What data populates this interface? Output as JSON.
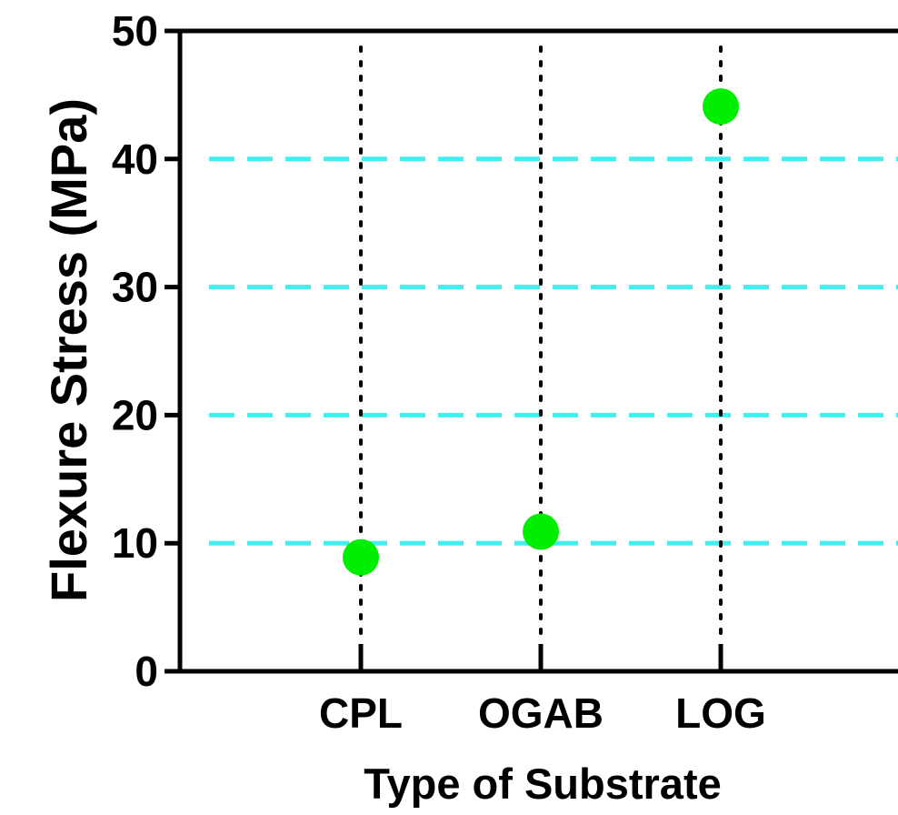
{
  "chart_data": {
    "type": "scatter",
    "categories": [
      "CPL",
      "OGAB",
      "LOG"
    ],
    "values": [
      8.9,
      10.9,
      44.1
    ],
    "xlabel": "Type of Substrate",
    "ylabel": "Flexure Stress (MPa)",
    "ylim": [
      0,
      50
    ],
    "yticks": [
      0,
      10,
      20,
      30,
      40,
      50
    ],
    "grid": true,
    "colors": {
      "marker": "#00ee00",
      "gridline": "#44eeee",
      "guide": "#000000",
      "axis": "#000000"
    }
  }
}
